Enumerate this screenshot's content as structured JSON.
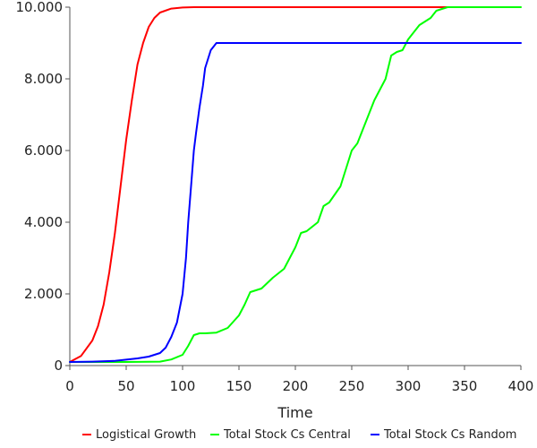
{
  "chart_data": {
    "type": "line",
    "title": "",
    "xlabel": "Time",
    "ylabel": "",
    "xlim": [
      0,
      400
    ],
    "ylim": [
      0,
      10000
    ],
    "x_ticks": [
      0,
      50,
      100,
      150,
      200,
      250,
      300,
      350,
      400
    ],
    "y_ticks": [
      0,
      2000,
      4000,
      6000,
      8000,
      10000
    ],
    "x_tick_labels": [
      "0",
      "50",
      "100",
      "150",
      "200",
      "250",
      "300",
      "350",
      "400"
    ],
    "y_tick_labels": [
      "0",
      "2.000",
      "4.000",
      "6.000",
      "8.000",
      "10.000"
    ],
    "grid": false,
    "legend_position": "bottom",
    "series": [
      {
        "name": "Logistical Growth",
        "color": "#ff0000",
        "x": [
          0,
          10,
          20,
          25,
          30,
          35,
          40,
          45,
          50,
          55,
          60,
          65,
          70,
          75,
          80,
          90,
          100,
          110,
          130,
          200,
          300,
          335
        ],
        "y": [
          100,
          270,
          700,
          1100,
          1700,
          2600,
          3700,
          5000,
          6300,
          7400,
          8400,
          9000,
          9450,
          9700,
          9850,
          9960,
          9990,
          10000,
          10000,
          10000,
          10000,
          10000
        ]
      },
      {
        "name": "Total Stock Cs Central",
        "color": "#00ff00",
        "x": [
          0,
          50,
          80,
          90,
          100,
          105,
          110,
          115,
          120,
          130,
          140,
          150,
          155,
          160,
          170,
          180,
          190,
          200,
          205,
          210,
          220,
          225,
          230,
          240,
          245,
          250,
          255,
          260,
          265,
          270,
          275,
          280,
          285,
          290,
          295,
          300,
          310,
          320,
          325,
          330,
          335,
          340,
          360,
          400
        ],
        "y": [
          100,
          100,
          110,
          170,
          300,
          550,
          850,
          900,
          900,
          920,
          1050,
          1400,
          1700,
          2050,
          2150,
          2450,
          2700,
          3300,
          3700,
          3750,
          4000,
          4450,
          4550,
          5000,
          5500,
          6000,
          6200,
          6600,
          7000,
          7400,
          7700,
          8000,
          8650,
          8750,
          8800,
          9100,
          9500,
          9700,
          9900,
          9950,
          10000,
          10000,
          10000,
          10000
        ]
      },
      {
        "name": "Total Stock Cs Random",
        "color": "#0000ff",
        "x": [
          0,
          20,
          40,
          60,
          70,
          80,
          85,
          90,
          95,
          100,
          103,
          105,
          108,
          110,
          112,
          115,
          118,
          120,
          125,
          130,
          132,
          140,
          200,
          300,
          400
        ],
        "y": [
          100,
          110,
          130,
          200,
          250,
          350,
          500,
          800,
          1200,
          2000,
          3000,
          4000,
          5200,
          6000,
          6500,
          7200,
          7800,
          8300,
          8800,
          9000,
          9000,
          9000,
          9000,
          9000,
          9000
        ]
      }
    ]
  }
}
